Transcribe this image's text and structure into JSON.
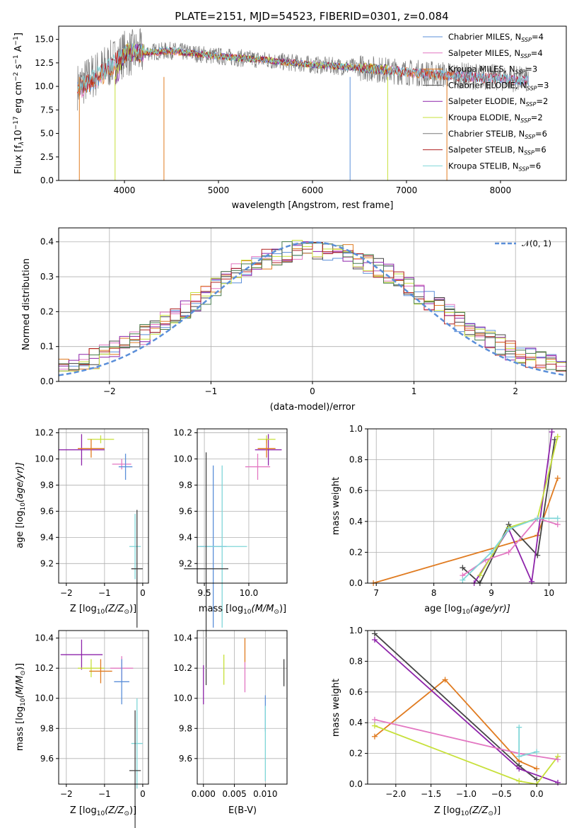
{
  "colors": {
    "chabrier_miles": "#5b8fd9",
    "salpeter_miles": "#e377c2",
    "kroupa_miles": "#e07b20",
    "chabrier_elodie": "#444444",
    "salpeter_elodie": "#8e24aa",
    "kroupa_elodie": "#c7e03a",
    "chabrier_stelib": "#7a7a7a",
    "salpeter_stelib": "#b02020",
    "kroupa_stelib": "#7fd6d8",
    "stelib_green": "#4a7d50",
    "gaussian": "#5b8fd9"
  },
  "spectrum_panel": {
    "title": "PLATE=2151, MJD=54523, FIBERID=0301, z=0.084",
    "xlabel": "wavelength [Angstrom, rest frame]",
    "ylabel": "Flux [f",
    "ylabel_sub": "λ",
    "ylabel_rest": "10",
    "ylabel_exp": "−17",
    "ylabel_units": " erg cm",
    "ylabel_exp2": "−2",
    "ylabel_s": " s",
    "ylabel_exp3": "−1",
    "ylabel_a": " A",
    "ylabel_exp4": "−1",
    "ylabel_end": "]",
    "xticks": [
      "4000",
      "5000",
      "6000",
      "7000",
      "8000"
    ],
    "yticks": [
      "0.0",
      "2.5",
      "5.0",
      "7.5",
      "10.0",
      "12.5",
      "15.0"
    ],
    "legend": [
      {
        "label": "Chabrier MILES, N",
        "sub": "SSP",
        "val": "=4"
      },
      {
        "label": "Salpeter MILES, N",
        "sub": "SSP",
        "val": "=4"
      },
      {
        "label": "Kroupa MILES, N",
        "sub": "SSP",
        "val": "=3"
      },
      {
        "label": "Chabrier ELODIE, N",
        "sub": "SSP",
        "val": "=3"
      },
      {
        "label": "Salpeter ELODIE, N",
        "sub": "SSP",
        "val": "=2"
      },
      {
        "label": "Kroupa ELODIE, N",
        "sub": "SSP",
        "val": "=2"
      },
      {
        "label": "Chabrier STELIB, N",
        "sub": "SSP",
        "val": "=6"
      },
      {
        "label": "Salpeter STELIB, N",
        "sub": "SSP",
        "val": "=6"
      },
      {
        "label": "Kroupa STELIB, N",
        "sub": "SSP",
        "val": "=6"
      }
    ]
  },
  "hist_panel": {
    "xlabel": "(data-model)/error",
    "ylabel": "Normed distribution",
    "xticks": [
      "−2",
      "−1",
      "0",
      "1",
      "2"
    ],
    "yticks": [
      "0.0",
      "0.1",
      "0.2",
      "0.3",
      "0.4"
    ],
    "legend_label": "𝒩(0, 1)"
  },
  "age_z_panel": {
    "xlabel": "Z [log",
    "xlabel_sub": "10",
    "xlabel_rest": "(Z/Z",
    "xlabel_sub2": "⊙",
    "xlabel_end": ")]",
    "ylabel": "age  [log",
    "ylabel_sub": "10",
    "ylabel_rest": "(age/yr)]",
    "xticks": [
      "−2",
      "−1",
      "0"
    ],
    "yticks": [
      "9.2",
      "9.4",
      "9.6",
      "9.8",
      "10.0",
      "10.2"
    ]
  },
  "age_mass_panel": {
    "xlabel": "mass [log",
    "xlabel_sub": "10",
    "xlabel_rest": "(M/M",
    "xlabel_sub2": "⊙",
    "xlabel_end": ")]",
    "xticks": [
      "9.5",
      "10.0"
    ],
    "yticks": [
      "9.2",
      "9.4",
      "9.6",
      "9.8",
      "10.0",
      "10.2"
    ]
  },
  "mw_age_panel": {
    "xlabel": "age  [log",
    "xlabel_sub": "10",
    "xlabel_rest": "(age/yr)]",
    "ylabel": "mass weight",
    "xticks": [
      "7",
      "8",
      "9",
      "10"
    ],
    "yticks": [
      "0.0",
      "0.2",
      "0.4",
      "0.6",
      "0.8",
      "1.0"
    ]
  },
  "mass_z_panel": {
    "xlabel": "Z [log",
    "xlabel_sub": "10",
    "xlabel_rest": "(Z/Z",
    "xlabel_sub2": "⊙",
    "xlabel_end": ")]",
    "ylabel": "mass [log",
    "ylabel_sub": "10",
    "ylabel_rest": "(M/M",
    "ylabel_sub2": "⊙",
    "ylabel_end": ")]",
    "xticks": [
      "−2",
      "−1",
      "0"
    ],
    "yticks": [
      "9.6",
      "9.8",
      "10.0",
      "10.2",
      "10.4"
    ]
  },
  "mass_ebv_panel": {
    "xlabel": "E(B-V)",
    "xticks": [
      "0.000",
      "0.005",
      "0.010"
    ],
    "yticks": [
      "9.6",
      "9.8",
      "10.0",
      "10.2",
      "10.4"
    ]
  },
  "mw_z_panel": {
    "xlabel": "Z [log",
    "xlabel_sub": "10",
    "xlabel_rest": "(Z/Z",
    "xlabel_sub2": "⊙",
    "xlabel_end": ")]",
    "ylabel": "mass weight",
    "xticks": [
      "−2.0",
      "−1.5",
      "−1.0",
      "−0.5",
      "0.0"
    ],
    "yticks": [
      "0.0",
      "0.2",
      "0.4",
      "0.6",
      "0.8",
      "1.0"
    ]
  },
  "chart_data": [
    {
      "type": "line",
      "title": "PLATE=2151, MJD=54523, FIBERID=0301, z=0.084",
      "xlabel": "wavelength [Angstrom, rest frame]",
      "xlim": [
        3300,
        8700
      ],
      "ylim": [
        0,
        16.4
      ],
      "grid": false,
      "legend_position": "top-right",
      "series": [
        {
          "name": "Chabrier MILES, NSSP=4",
          "x": [
            3500,
            3800,
            4000,
            4500,
            5000,
            5500,
            6000,
            6500,
            7000,
            7500,
            8000,
            8300
          ],
          "y": [
            9.5,
            11.5,
            13.5,
            13.8,
            13.2,
            12.8,
            12.3,
            12.0,
            11.5,
            11.1,
            10.8,
            10.6
          ]
        },
        {
          "name": "Salpeter MILES, NSSP=4",
          "x": [
            3500,
            3800,
            4000,
            4500,
            5000,
            5500,
            6000,
            6500,
            7000,
            7500,
            8000,
            8300
          ],
          "y": [
            9.4,
            11.4,
            13.4,
            13.7,
            13.2,
            12.8,
            12.3,
            12.0,
            11.5,
            11.1,
            10.8,
            10.6
          ]
        },
        {
          "name": "Kroupa MILES, NSSP=3",
          "x": [
            3500,
            3800,
            4000,
            4500,
            5000,
            5500,
            6000,
            6500,
            7000,
            7500
          ],
          "y": [
            9.5,
            11.4,
            13.4,
            13.7,
            13.2,
            12.8,
            12.3,
            12.0,
            11.5,
            11.1
          ]
        },
        {
          "name": "Chabrier ELODIE, NSSP=3",
          "x": [
            3900,
            4000,
            4500,
            5000,
            5500,
            6000,
            6500,
            6800
          ],
          "y": [
            10.5,
            13.5,
            13.8,
            13.2,
            12.8,
            12.3,
            12.0,
            11.8
          ]
        },
        {
          "name": "Salpeter ELODIE, NSSP=2",
          "x": [
            3900,
            4000,
            4500,
            5000,
            5500,
            6000,
            6500,
            6800
          ],
          "y": [
            10.5,
            13.5,
            13.8,
            13.2,
            12.8,
            12.3,
            12.0,
            11.8
          ]
        },
        {
          "name": "Kroupa ELODIE, NSSP=2",
          "x": [
            3900,
            4000,
            4500,
            5000,
            5500,
            6000,
            6500,
            6800
          ],
          "y": [
            10.6,
            13.6,
            13.8,
            13.2,
            12.8,
            12.3,
            12.0,
            11.8
          ]
        },
        {
          "name": "Chabrier STELIB, NSSP=6",
          "x": [
            3500,
            3800,
            4000,
            4500,
            5000,
            5500,
            6000,
            6500,
            7000,
            7500,
            8000,
            8300
          ],
          "y": [
            10.0,
            12.0,
            13.5,
            13.8,
            13.2,
            12.8,
            12.3,
            12.0,
            11.5,
            11.2,
            10.9,
            10.7
          ]
        },
        {
          "name": "Salpeter STELIB, NSSP=6",
          "x": [
            3500,
            3800,
            4000,
            4500,
            5000,
            5500,
            6000,
            6500,
            7000,
            7500,
            8000,
            8300
          ],
          "y": [
            9.8,
            11.8,
            13.5,
            13.8,
            13.2,
            12.8,
            12.3,
            12.0,
            11.5,
            11.1,
            10.8,
            10.6
          ]
        },
        {
          "name": "Kroupa STELIB, NSSP=6",
          "x": [
            3500,
            3800,
            4000,
            4500,
            5000,
            5500,
            6000,
            6500,
            7000,
            7500,
            8000,
            8300
          ],
          "y": [
            9.8,
            11.8,
            13.6,
            13.9,
            13.2,
            12.8,
            12.3,
            12.0,
            11.5,
            11.1,
            10.8,
            10.6
          ]
        }
      ]
    },
    {
      "type": "line",
      "xlabel": "(data-model)/error",
      "ylabel": "Normed distribution",
      "xlim": [
        -2.5,
        2.5
      ],
      "ylim": [
        0,
        0.44
      ],
      "grid": true,
      "legend_position": "top-right",
      "series": [
        {
          "name": "𝒩(0, 1)",
          "style": "dashed",
          "x": [
            -2.5,
            -2.0,
            -1.5,
            -1.0,
            -0.5,
            0.0,
            0.5,
            1.0,
            1.5,
            2.0,
            2.5
          ],
          "y": [
            0.018,
            0.054,
            0.13,
            0.242,
            0.352,
            0.399,
            0.352,
            0.242,
            0.13,
            0.054,
            0.018
          ]
        },
        {
          "x": [
            -2.5,
            -2.0,
            -1.5,
            -1.0,
            -0.5,
            0.0,
            0.5,
            1.0,
            1.5,
            2.0,
            2.5
          ],
          "y": [
            0.045,
            0.08,
            0.14,
            0.25,
            0.34,
            0.38,
            0.33,
            0.26,
            0.16,
            0.08,
            0.03
          ]
        }
      ]
    },
    {
      "type": "scatter",
      "xlabel": "Z [log10(Z/Z⊙)]",
      "ylabel": "age [log10(age/yr)]",
      "xlim": [
        -2.2,
        0.15
      ],
      "ylim": [
        9.05,
        10.23
      ],
      "grid": true,
      "points": [
        {
          "x": -1.6,
          "y": 10.07,
          "xerr": 0.6,
          "yerr": 0.12
        },
        {
          "x": -1.1,
          "y": 10.15,
          "xerr": 0.35,
          "yerr": 0.03
        },
        {
          "x": -1.35,
          "y": 10.08,
          "xerr": 0.35,
          "yerr": 0.07
        },
        {
          "x": -0.55,
          "y": 9.96,
          "xerr": 0.25,
          "yerr": 0.04
        },
        {
          "x": -0.45,
          "y": 9.94,
          "xerr": 0.18,
          "yerr": 0.1
        },
        {
          "x": -0.2,
          "y": 9.33,
          "xerr": 0.15,
          "yerr": 0.25
        },
        {
          "x": -0.15,
          "y": 9.16,
          "xerr": 0.15,
          "yerr": 0.45
        }
      ]
    },
    {
      "type": "scatter",
      "xlabel": "mass [log10(M/M⊙)]",
      "xlim": [
        9.42,
        10.43
      ],
      "ylim": [
        9.05,
        10.23
      ],
      "grid": true,
      "points": [
        {
          "x": 10.22,
          "y": 10.07,
          "xerr": 0.15,
          "yerr": 0.12
        },
        {
          "x": 10.2,
          "y": 10.15,
          "xerr": 0.1,
          "yerr": 0.03
        },
        {
          "x": 10.2,
          "y": 10.08,
          "xerr": 0.1,
          "yerr": 0.07
        },
        {
          "x": 10.1,
          "y": 9.94,
          "xerr": 0.14,
          "yerr": 0.1
        },
        {
          "x": 9.6,
          "y": 9.33,
          "xerr": 0.15,
          "yerr": 0.62
        },
        {
          "x": 9.7,
          "y": 9.33,
          "xerr": 0.28,
          "yerr": 0.62
        },
        {
          "x": 9.52,
          "y": 9.16,
          "xerr": 0.25,
          "yerr": 0.89
        }
      ]
    },
    {
      "type": "line",
      "xlabel": "age [log10(age/yr)]",
      "ylabel": "mass weight",
      "xlim": [
        6.85,
        10.3
      ],
      "ylim": [
        0,
        1.0
      ],
      "grid": true,
      "series": [
        {
          "x": [
            6.95,
            9.8,
            10.15
          ],
          "y": [
            0.0,
            0.31,
            0.68
          ]
        },
        {
          "x": [
            8.5,
            8.8,
            9.3,
            9.8,
            10.1
          ],
          "y": [
            0.1,
            0.0,
            0.38,
            0.18,
            0.93
          ]
        },
        {
          "x": [
            8.7,
            9.3,
            9.7,
            10.05
          ],
          "y": [
            0.0,
            0.35,
            0.01,
            0.98
          ]
        },
        {
          "x": [
            8.8,
            9.3,
            9.8,
            10.15
          ],
          "y": [
            0.05,
            0.36,
            0.42,
            0.95
          ]
        },
        {
          "x": [
            8.5,
            8.9,
            9.3,
            9.8,
            10.15
          ],
          "y": [
            0.05,
            0.15,
            0.2,
            0.42,
            0.38
          ]
        },
        {
          "x": [
            8.5,
            9.0,
            9.3,
            9.8,
            10.15
          ],
          "y": [
            0.02,
            0.2,
            0.35,
            0.42,
            0.42
          ]
        }
      ]
    },
    {
      "type": "scatter",
      "xlabel": "Z [log10(Z/Z⊙)]",
      "ylabel": "mass [log10(M/M⊙)]",
      "xlim": [
        -2.2,
        0.15
      ],
      "ylim": [
        9.43,
        10.45
      ],
      "grid": true,
      "points": [
        {
          "x": -1.6,
          "y": 10.29,
          "xerr": 0.55,
          "yerr": 0.1
        },
        {
          "x": -1.35,
          "y": 10.2,
          "xerr": 0.35,
          "yerr": 0.06
        },
        {
          "x": -1.1,
          "y": 10.18,
          "xerr": 0.3,
          "yerr": 0.08
        },
        {
          "x": -0.55,
          "y": 10.2,
          "xerr": 0.3,
          "yerr": 0.08
        },
        {
          "x": -0.55,
          "y": 10.11,
          "xerr": 0.2,
          "yerr": 0.15
        },
        {
          "x": -0.15,
          "y": 9.7,
          "xerr": 0.15,
          "yerr": 0.3
        },
        {
          "x": -0.2,
          "y": 9.52,
          "xerr": 0.15,
          "yerr": 0.4
        }
      ]
    },
    {
      "type": "scatter",
      "xlabel": "E(B-V)",
      "xlim": [
        -0.001,
        0.0135
      ],
      "ylim": [
        9.43,
        10.45
      ],
      "grid": true,
      "points": [
        {
          "x": 0.0,
          "y": 10.09,
          "yerr": 0.13
        },
        {
          "x": 0.0033,
          "y": 10.19,
          "yerr": 0.1
        },
        {
          "x": 0.0067,
          "y": 10.32,
          "yerr": 0.08
        },
        {
          "x": 0.0067,
          "y": 10.14,
          "yerr": 0.1
        },
        {
          "x": 0.01,
          "y": 9.9,
          "yerr": 0.12
        },
        {
          "x": 0.01,
          "y": 9.7,
          "yerr": 0.25
        },
        {
          "x": 0.013,
          "y": 10.17,
          "yerr": 0.09
        }
      ]
    },
    {
      "type": "line",
      "xlabel": "Z [log10(Z/Z⊙)]",
      "ylabel": "mass weight",
      "xlim": [
        -2.4,
        0.42
      ],
      "ylim": [
        0,
        1.0
      ],
      "grid": true,
      "series": [
        {
          "x": [
            -2.3,
            -1.3,
            -0.25,
            0.0
          ],
          "y": [
            0.31,
            0.68,
            0.15,
            0.1
          ]
        },
        {
          "x": [
            -2.3,
            -0.25,
            0.0
          ],
          "y": [
            0.98,
            0.12,
            0.03
          ]
        },
        {
          "x": [
            -2.3,
            -0.25,
            0.3
          ],
          "y": [
            0.94,
            0.1,
            0.01
          ]
        },
        {
          "x": [
            -2.3,
            -0.25,
            0.0,
            0.3
          ],
          "y": [
            0.38,
            0.02,
            0.0,
            0.18
          ]
        },
        {
          "x": [
            -2.3,
            -0.25,
            0.3
          ],
          "y": [
            0.42,
            0.2,
            0.16
          ]
        },
        {
          "x": [
            -0.25,
            -0.25,
            0.0
          ],
          "y": [
            0.37,
            0.18,
            0.21
          ]
        }
      ]
    }
  ]
}
